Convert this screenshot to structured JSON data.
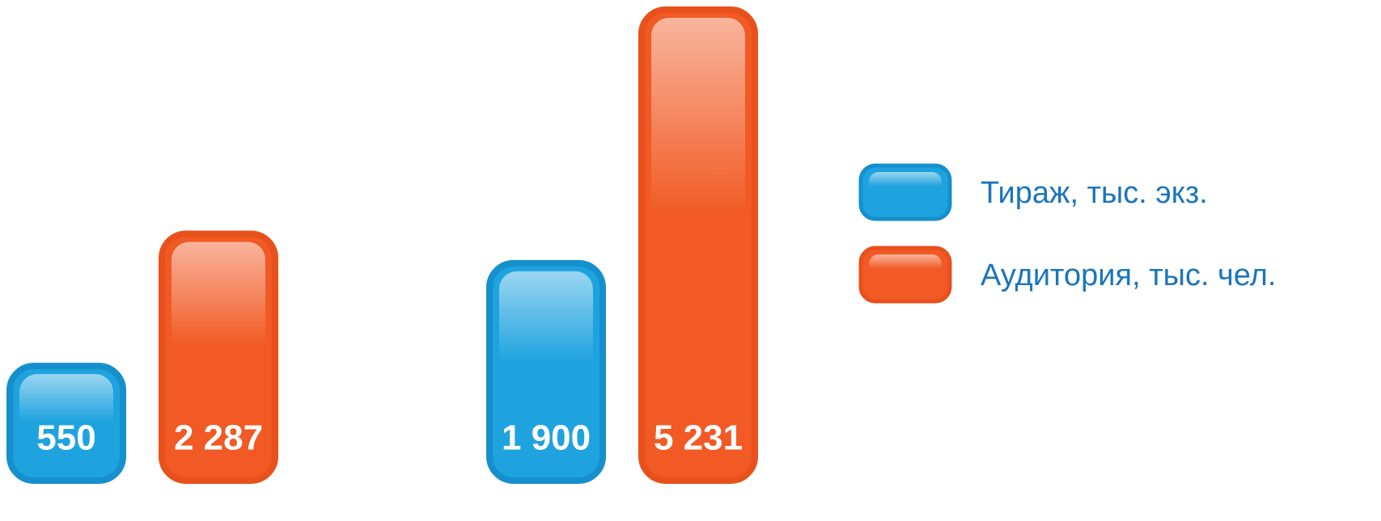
{
  "chart_data": {
    "type": "bar",
    "categories": [
      null,
      null
    ],
    "series": [
      {
        "name": "Тираж, тыс. экз.",
        "color": "#1ea3df",
        "values": [
          550,
          1900
        ],
        "value_labels": [
          "550",
          "1 900"
        ]
      },
      {
        "name": "Аудитория, тыс. чел.",
        "color": "#f15a24",
        "values": [
          2287,
          5231
        ],
        "value_labels": [
          "2 287",
          "5 231"
        ]
      }
    ],
    "legend": "right"
  }
}
